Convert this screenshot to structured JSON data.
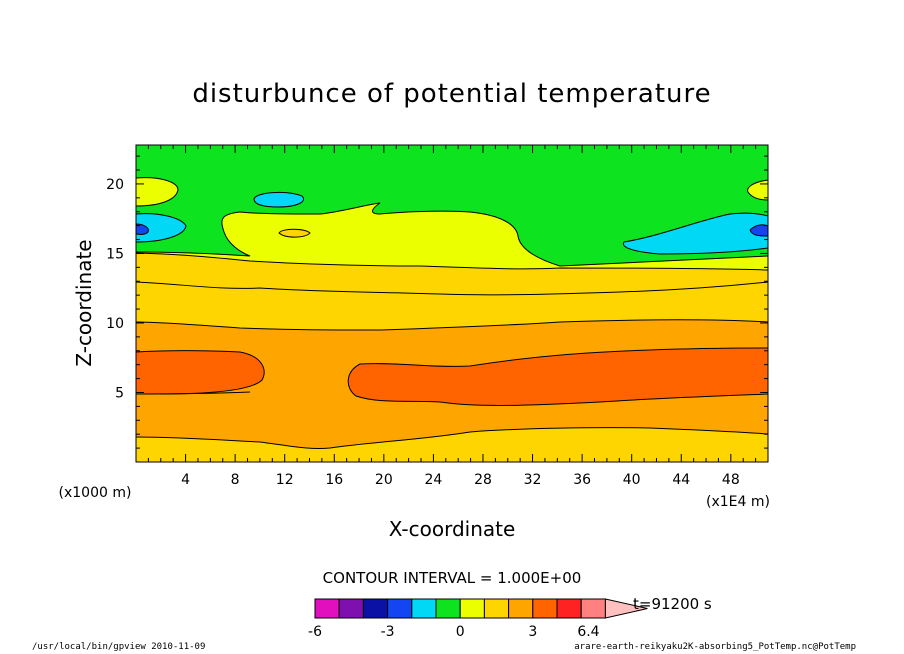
{
  "chart_data": {
    "type": "contour",
    "title": "disturbunce of potential temperature",
    "xlabel": "X-coordinate",
    "ylabel": "Z-coordinate",
    "x_scale_note": "(x1E4 m)",
    "y_scale_note": "(x1000 m)",
    "xlim": [
      0,
      51
    ],
    "ylim": [
      0,
      22.8
    ],
    "x_ticks": [
      "4",
      "8",
      "12",
      "16",
      "20",
      "24",
      "28",
      "32",
      "36",
      "40",
      "44",
      "48"
    ],
    "y_ticks": [
      "5",
      "10",
      "15",
      "20"
    ],
    "contour_interval_text": "CONTOUR INTERVAL = 1.000E+00",
    "time_text": "t=91200 s",
    "colorbar": {
      "tick_labels": [
        "-6",
        "-3",
        "0",
        "3",
        "6.4"
      ],
      "min": -6,
      "max": 6.4,
      "colors": [
        "#e20fbf",
        "#7f10b0",
        "#0c11a6",
        "#1345f2",
        "#00d8f5",
        "#0ee320",
        "#ebff00",
        "#ffd500",
        "#ffa500",
        "#ff6400",
        "#ff2222",
        "#ff8080",
        "#ffc0c0"
      ]
    },
    "bands": [
      {
        "label": "1 to 2",
        "color": "#ffd500",
        "from_z": 0,
        "to_z": 2.0
      },
      {
        "label": "2 to 3",
        "color": "#ffa500",
        "from_z": 2.0,
        "to_z": 5.0
      },
      {
        "label": "3 to 4",
        "color": "#ff6400",
        "from_z": 5.0,
        "to_z": 8.0
      },
      {
        "label": "2 to 3",
        "color": "#ffa500",
        "from_z": 8.0,
        "to_z": 10.0
      },
      {
        "label": "1 to 2",
        "color": "#ffd500",
        "from_z": 10.0,
        "to_z": 15.3
      },
      {
        "label": "0 to 1",
        "color": "#ebff00",
        "from_z": 15.3,
        "to_z": 17.5
      },
      {
        "label": "-1 to 0",
        "color": "#0ee320",
        "from_z": 17.5,
        "to_z": 22.8
      }
    ]
  },
  "footer": {
    "left": "/usr/local/bin/gpview  2010-11-09",
    "right": "arare-earth-reikyaku2K-absorbing5_PotTemp.nc@PotTemp"
  },
  "colors": {
    "background": "#ffffff",
    "frame": "#000000",
    "contour_line": "#000000"
  }
}
